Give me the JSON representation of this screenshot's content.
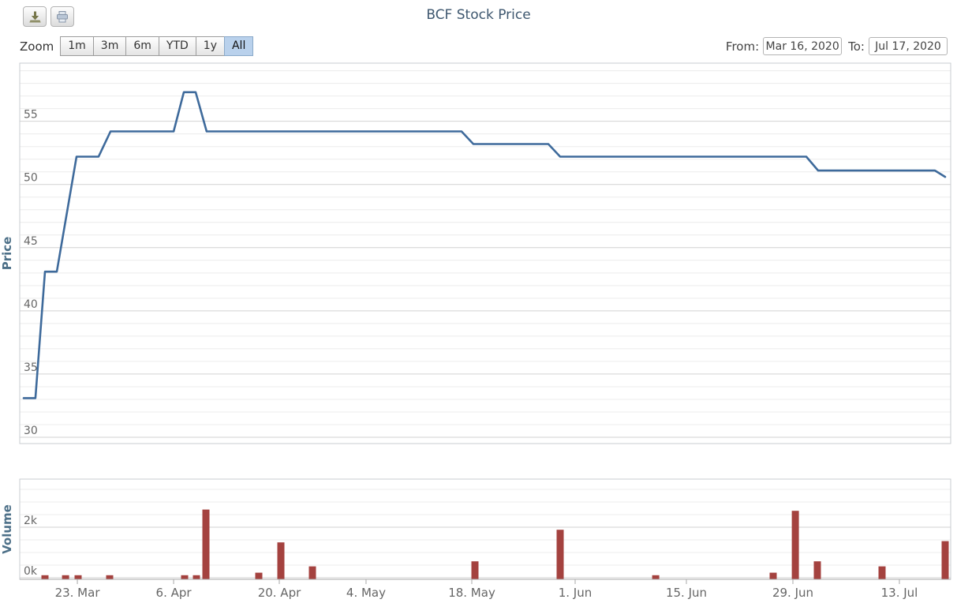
{
  "header": {
    "title": "BCF Stock Price"
  },
  "toolbar": {
    "zoom_label": "Zoom",
    "zoom_buttons": [
      {
        "label": "1m",
        "selected": false
      },
      {
        "label": "3m",
        "selected": false
      },
      {
        "label": "6m",
        "selected": false
      },
      {
        "label": "YTD",
        "selected": false
      },
      {
        "label": "1y",
        "selected": false
      },
      {
        "label": "All",
        "selected": true
      }
    ],
    "from_label": "From:",
    "from_value": "Mar 16, 2020",
    "to_label": "To:",
    "to_value": "Jul 17, 2020"
  },
  "colors": {
    "line": "#3e6a9b",
    "bar": "#a4423f",
    "title": "#3e576f",
    "axis_title": "#4d7088",
    "tick_label": "#666666",
    "grid_minor": "#ececec",
    "grid_major": "#d2d2d2",
    "plot_border": "#c9ccd1",
    "x_axis_line": "#a8a8a8",
    "selected_button": "#b9d1ec"
  },
  "chart_data": [
    {
      "type": "line",
      "title": "BCF Stock Price",
      "ylabel": "Price",
      "y_range": [
        29.5,
        59.6
      ],
      "y_minor_step": 1,
      "y_major_step": 5,
      "y_tick_labels": [
        "30",
        "35",
        "40",
        "45",
        "50",
        "55"
      ],
      "grid": true,
      "legend_position": "none",
      "points": [
        {
          "date": "2020-03-16",
          "price": 33.1,
          "f": 0.0042
        },
        {
          "date": "2020-03-18",
          "price": 33.1,
          "f": 0.0169
        },
        {
          "date": "2020-03-19",
          "price": 43.1,
          "f": 0.0271
        },
        {
          "date": "2020-03-20",
          "price": 43.1,
          "f": 0.0398
        },
        {
          "date": "2020-03-23",
          "price": 52.2,
          "f": 0.061
        },
        {
          "date": "2020-03-26",
          "price": 52.2,
          "f": 0.0847
        },
        {
          "date": "2020-03-27",
          "price": 54.2,
          "f": 0.0975
        },
        {
          "date": "2020-04-06",
          "price": 54.2,
          "f": 0.1653
        },
        {
          "date": "2020-04-07",
          "price": 57.3,
          "f": 0.1763
        },
        {
          "date": "2020-04-08",
          "price": 57.3,
          "f": 0.189
        },
        {
          "date": "2020-04-09",
          "price": 54.2,
          "f": 0.2008
        },
        {
          "date": "2020-05-14",
          "price": 54.2,
          "f": 0.4746
        },
        {
          "date": "2020-05-15",
          "price": 53.2,
          "f": 0.4873
        },
        {
          "date": "2020-05-25",
          "price": 53.2,
          "f": 0.5678
        },
        {
          "date": "2020-05-26",
          "price": 52.2,
          "f": 0.5805
        },
        {
          "date": "2020-06-30",
          "price": 52.2,
          "f": 0.8449
        },
        {
          "date": "2020-07-01",
          "price": 51.1,
          "f": 0.8576
        },
        {
          "date": "2020-07-16",
          "price": 51.1,
          "f": 0.9831
        },
        {
          "date": "2020-07-17",
          "price": 50.6,
          "f": 0.9941
        }
      ]
    },
    {
      "type": "bar",
      "ylabel": "Volume",
      "y_range": [
        -62.5,
        3906
      ],
      "y_minor_step": 500,
      "y_major_step": 2000,
      "y_tick_labels": [
        "0k",
        "2k"
      ],
      "grid": true,
      "legend_position": "none",
      "x_ticks": [
        {
          "label": "23. Mar",
          "f": 0.0619
        },
        {
          "label": "6. Apr",
          "f": 0.1653
        },
        {
          "label": "20. Apr",
          "f": 0.2788
        },
        {
          "label": "4. May",
          "f": 0.372
        },
        {
          "label": "18. May",
          "f": 0.4856
        },
        {
          "label": "1. Jun",
          "f": 0.5966
        },
        {
          "label": "15. Jun",
          "f": 0.7161
        },
        {
          "label": "29. Jun",
          "f": 0.8305
        },
        {
          "label": "13. Jul",
          "f": 0.9449
        }
      ],
      "bars": [
        {
          "date": "2020-03-19",
          "volume": 100,
          "f": 0.0271
        },
        {
          "date": "2020-03-23",
          "volume": 100,
          "f": 0.0492
        },
        {
          "date": "2020-03-24",
          "volume": 100,
          "f": 0.0627
        },
        {
          "date": "2020-03-30",
          "volume": 100,
          "f": 0.0966
        },
        {
          "date": "2020-04-07",
          "volume": 100,
          "f": 0.1771
        },
        {
          "date": "2020-04-08",
          "volume": 100,
          "f": 0.1898
        },
        {
          "date": "2020-04-09",
          "volume": 2700,
          "f": 0.2
        },
        {
          "date": "2020-04-16",
          "volume": 200,
          "f": 0.2568
        },
        {
          "date": "2020-04-20",
          "volume": 1400,
          "f": 0.2805
        },
        {
          "date": "2020-04-23",
          "volume": 450,
          "f": 0.3144
        },
        {
          "date": "2020-05-15",
          "volume": 650,
          "f": 0.489
        },
        {
          "date": "2020-05-26",
          "volume": 1900,
          "f": 0.5805
        },
        {
          "date": "2020-06-08",
          "volume": 100,
          "f": 0.6831
        },
        {
          "date": "2020-06-24",
          "volume": 200,
          "f": 0.8093
        },
        {
          "date": "2020-06-29",
          "volume": 2650,
          "f": 0.8331
        },
        {
          "date": "2020-07-01",
          "volume": 650,
          "f": 0.8568
        },
        {
          "date": "2020-07-09",
          "volume": 450,
          "f": 0.9263
        },
        {
          "date": "2020-07-17",
          "volume": 1450,
          "f": 0.9941
        }
      ]
    }
  ]
}
